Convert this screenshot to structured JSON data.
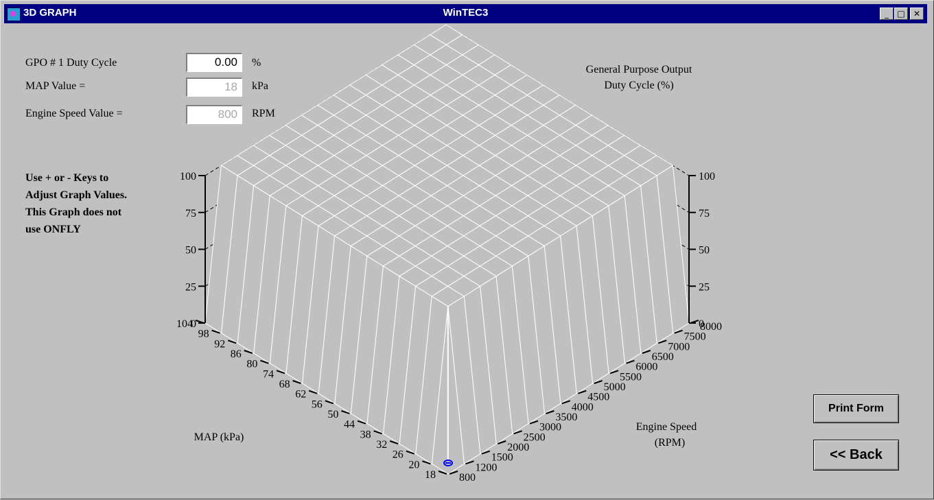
{
  "window": {
    "left_title": "3D GRAPH",
    "title": "WinTEC3",
    "controls": [
      "_",
      "□",
      "✕"
    ]
  },
  "fields": {
    "duty_label": "GPO # 1 Duty Cycle",
    "duty_value": "0.00",
    "duty_unit": "%",
    "map_label": "MAP Value =",
    "map_value": "18",
    "map_unit": "kPa",
    "rpm_label": "Engine Speed Value =",
    "rpm_value": "800",
    "rpm_unit": "RPM"
  },
  "instructions": [
    "Use + or - Keys to",
    "Adjust Graph Values.",
    "This Graph does not",
    "use ONFLY"
  ],
  "buttons": {
    "print": "Print Form",
    "back": "<< Back"
  },
  "chart_data": {
    "type": "surface3d",
    "z_title_lines": [
      "General Purpose Output",
      "Duty Cycle (%)"
    ],
    "x_title": "MAP (kPa)",
    "y_title_lines": [
      "Engine Speed",
      "(RPM)"
    ],
    "z_ticks": [
      0,
      25,
      50,
      75,
      100
    ],
    "map_ticks": [
      104,
      98,
      92,
      86,
      80,
      74,
      68,
      62,
      56,
      50,
      44,
      38,
      32,
      26,
      20,
      18
    ],
    "rpm_ticks": [
      800,
      1200,
      1500,
      2000,
      2500,
      3000,
      3500,
      4000,
      4500,
      5000,
      5500,
      6000,
      6500,
      7000,
      7500,
      8000
    ],
    "surface": "100 for all points except MAP 18 kPa row and 800 RPM column which are 0",
    "zero_row_map": 18,
    "zero_col_rpm": 800,
    "plateau_value": 100,
    "selected_point": {
      "map": 18,
      "rpm": 800,
      "value": 0.0
    },
    "colors": {
      "surface": "#c0c0c0",
      "grid": "#ffffff",
      "marker": "#0000ff"
    }
  }
}
